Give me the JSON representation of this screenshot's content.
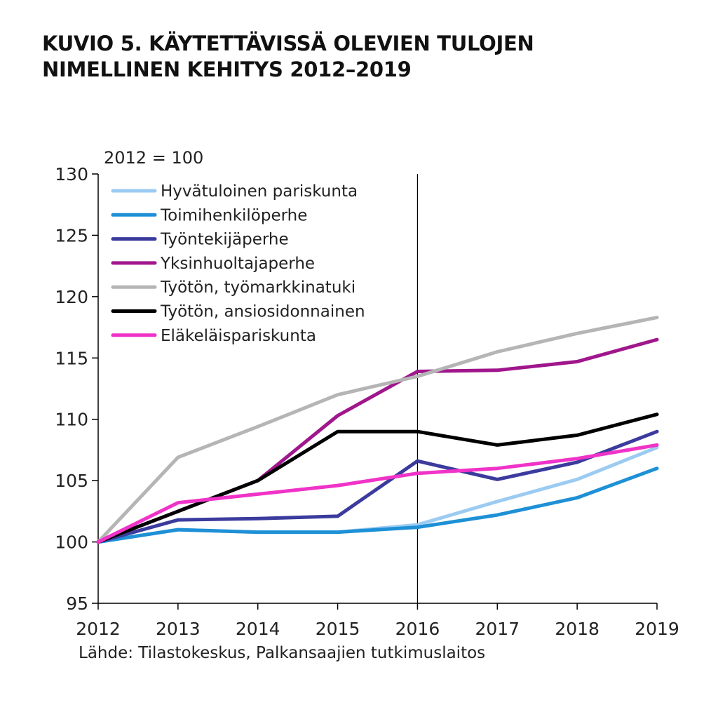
{
  "page": {
    "title_line1": "KUVIO 5. KÄYTETTÄVISSÄ OLEVIEN TULOJEN",
    "title_line2": "NIMELLINEN KEHITYS 2012–2019",
    "source": "Lähde: Tilastokeskus, Palkansaajien tutkimuslaitos"
  },
  "chart_data": {
    "type": "line",
    "title": "KUVIO 5. KÄYTETTÄVISSÄ OLEVIEN TULOJEN NIMELLINEN KEHITYS 2012–2019",
    "unit_label": "2012 = 100",
    "xlabel": "",
    "ylabel": "",
    "x": [
      2012,
      2013,
      2014,
      2015,
      2016,
      2017,
      2018,
      2019
    ],
    "ylim": [
      95,
      130
    ],
    "yticks": [
      95,
      100,
      105,
      110,
      115,
      120,
      125,
      130
    ],
    "grid": false,
    "vertical_reference_line": 2016,
    "legend_position": "top-left",
    "series": [
      {
        "name": "Hyvätuloinen pariskunta",
        "color": "#9ccbf2",
        "values": [
          100,
          101.0,
          100.8,
          100.8,
          101.4,
          103.3,
          105.1,
          107.7
        ]
      },
      {
        "name": "Toimihenkilöperhe",
        "color": "#1e90d6",
        "values": [
          100,
          101.0,
          100.8,
          100.8,
          101.2,
          102.2,
          103.6,
          106.0
        ]
      },
      {
        "name": "Työntekijäperhe",
        "color": "#3b3b9e",
        "values": [
          100,
          101.8,
          101.9,
          102.1,
          106.6,
          105.1,
          106.5,
          109.0
        ]
      },
      {
        "name": "Yksinhuoltajaperhe",
        "color": "#a0168c",
        "values": [
          100,
          102.5,
          105.0,
          110.3,
          113.9,
          114.0,
          114.7,
          116.5
        ]
      },
      {
        "name": "Työtön, työmarkkinatuki",
        "color": "#b5b5b5",
        "values": [
          100,
          106.9,
          109.4,
          112.0,
          113.5,
          115.5,
          117.0,
          118.3
        ]
      },
      {
        "name": "Työtön, ansiosidonnainen",
        "color": "#000000",
        "values": [
          100,
          102.5,
          105.0,
          109.0,
          109.0,
          107.9,
          108.7,
          110.4
        ]
      },
      {
        "name": "Eläkeläispariskunta",
        "color": "#f033c8",
        "values": [
          100,
          103.2,
          103.9,
          104.6,
          105.6,
          106.0,
          106.8,
          107.9
        ]
      }
    ]
  }
}
